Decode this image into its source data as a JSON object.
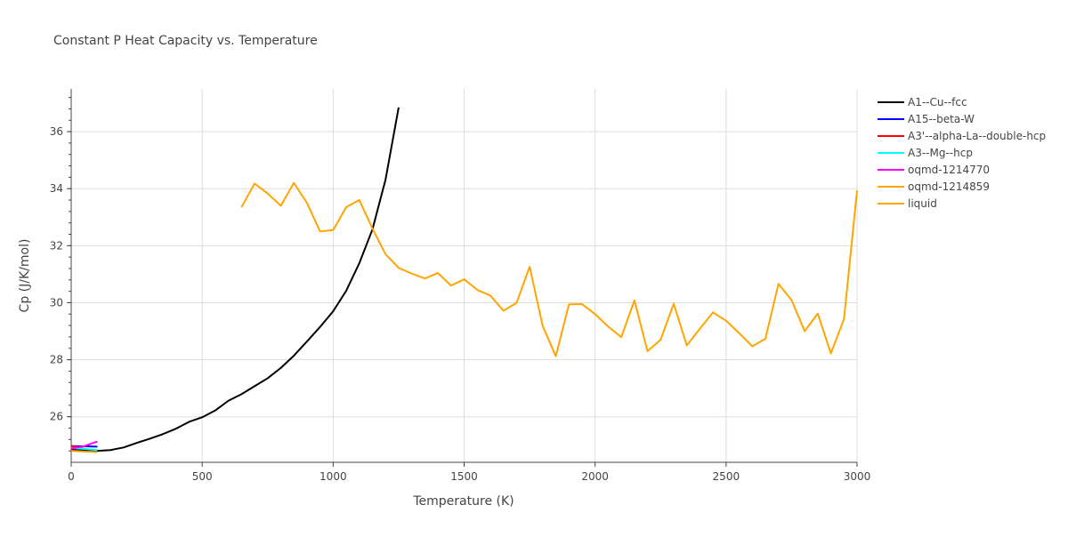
{
  "chart_data": {
    "type": "line",
    "title": "Constant P Heat Capacity vs. Temperature",
    "xlabel": "Temperature (K)",
    "ylabel": "Cp (J/K/mol)",
    "xlim": [
      0,
      3000
    ],
    "ylim": [
      24.4,
      37.5
    ],
    "xticks": [
      0,
      500,
      1000,
      1500,
      2000,
      2500,
      3000
    ],
    "yticks": [
      26,
      28,
      30,
      32,
      34,
      36
    ],
    "grid": true,
    "legend_position": "top-right",
    "series": [
      {
        "name": "A1--Cu--fcc",
        "color": "#000000",
        "x": [
          0,
          50,
          100,
          150,
          200,
          250,
          300,
          350,
          400,
          450,
          500,
          550,
          600,
          650,
          700,
          750,
          800,
          850,
          900,
          950,
          1000,
          1050,
          1100,
          1150,
          1200,
          1250
        ],
        "y": [
          24.85,
          24.83,
          24.8,
          24.83,
          24.92,
          25.08,
          25.23,
          25.39,
          25.58,
          25.82,
          25.98,
          26.22,
          26.56,
          26.79,
          27.07,
          27.35,
          27.71,
          28.14,
          28.64,
          29.15,
          29.7,
          30.42,
          31.39,
          32.57,
          34.32,
          36.85
        ]
      },
      {
        "name": "A15--beta-W",
        "color": "#0000ff",
        "x": [
          0,
          50,
          100
        ],
        "y": [
          24.97,
          24.96,
          24.95
        ]
      },
      {
        "name": "A3'--alpha-La--double-hcp",
        "color": "#ff0000",
        "x": [
          0,
          30,
          60
        ],
        "y": [
          24.98,
          24.92,
          24.85
        ]
      },
      {
        "name": "A3--Mg--hcp",
        "color": "#00ffff",
        "x": [
          0,
          50,
          100
        ],
        "y": [
          24.9,
          24.87,
          24.83
        ]
      },
      {
        "name": "oqmd-1214770",
        "color": "#ff00ff",
        "x": [
          0,
          50,
          100
        ],
        "y": [
          24.88,
          24.97,
          25.13
        ]
      },
      {
        "name": "oqmd-1214859",
        "color": "#ffa500",
        "x": [
          0,
          50,
          100
        ],
        "y": [
          24.8,
          24.78,
          24.76
        ]
      },
      {
        "name": "liquid",
        "color": "#ffa500",
        "x": [
          650,
          700,
          750,
          800,
          850,
          900,
          950,
          1000,
          1050,
          1100,
          1150,
          1200,
          1250,
          1300,
          1350,
          1400,
          1450,
          1500,
          1550,
          1600,
          1650,
          1700,
          1750,
          1800,
          1850,
          1900,
          1950,
          2000,
          2050,
          2100,
          2150,
          2200,
          2250,
          2300,
          2350,
          2400,
          2450,
          2500,
          2550,
          2600,
          2650,
          2700,
          2750,
          2800,
          2850,
          2900,
          2950,
          3000
        ],
        "y": [
          33.35,
          34.18,
          33.83,
          33.4,
          34.2,
          33.5,
          32.5,
          32.55,
          33.35,
          33.6,
          32.6,
          31.7,
          31.22,
          31.02,
          30.85,
          31.04,
          30.6,
          30.82,
          30.45,
          30.25,
          29.72,
          29.99,
          31.26,
          29.18,
          28.12,
          29.94,
          29.95,
          29.6,
          29.16,
          28.79,
          30.08,
          28.3,
          28.7,
          29.96,
          28.5,
          29.09,
          29.66,
          29.37,
          28.93,
          28.47,
          28.73,
          30.66,
          30.09,
          29.0,
          29.62,
          28.22,
          29.42,
          33.94
        ]
      }
    ]
  }
}
